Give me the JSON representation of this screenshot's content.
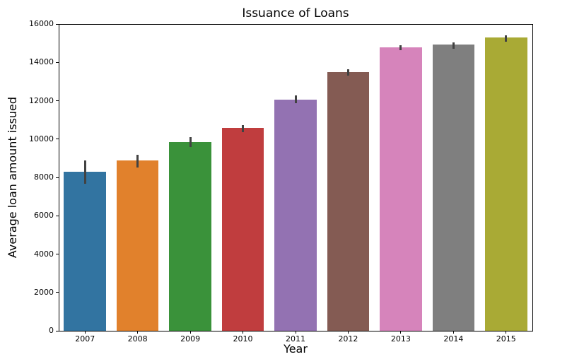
{
  "figure": {
    "background": "#ffffff",
    "axis_color": "#000000"
  },
  "chart_data": {
    "type": "bar",
    "title": "Issuance of Loans",
    "xlabel": "Year",
    "ylabel": "Average loan amount issued",
    "categories": [
      "2007",
      "2008",
      "2009",
      "2010",
      "2011",
      "2012",
      "2013",
      "2014",
      "2015"
    ],
    "values": [
      8300,
      8870,
      9860,
      10570,
      12050,
      13490,
      14780,
      14930,
      15300
    ],
    "ci_low": [
      7650,
      8520,
      9600,
      10350,
      11860,
      13300,
      14630,
      14710,
      15080
    ],
    "ci_high": [
      8870,
      9180,
      10100,
      10720,
      12270,
      13640,
      14890,
      15040,
      15410
    ],
    "bar_colors": [
      "#3274A1",
      "#E1812C",
      "#3A923A",
      "#C03D3E",
      "#9372B2",
      "#845B53",
      "#D684BB",
      "#7F7F7F",
      "#A9AA35"
    ],
    "errorbar_color": "#424242",
    "ylim": [
      0,
      16000
    ],
    "yticks": [
      0,
      2000,
      4000,
      6000,
      8000,
      10000,
      12000,
      14000,
      16000
    ],
    "bar_rel_width": 0.8,
    "grid": false,
    "legend": false
  }
}
